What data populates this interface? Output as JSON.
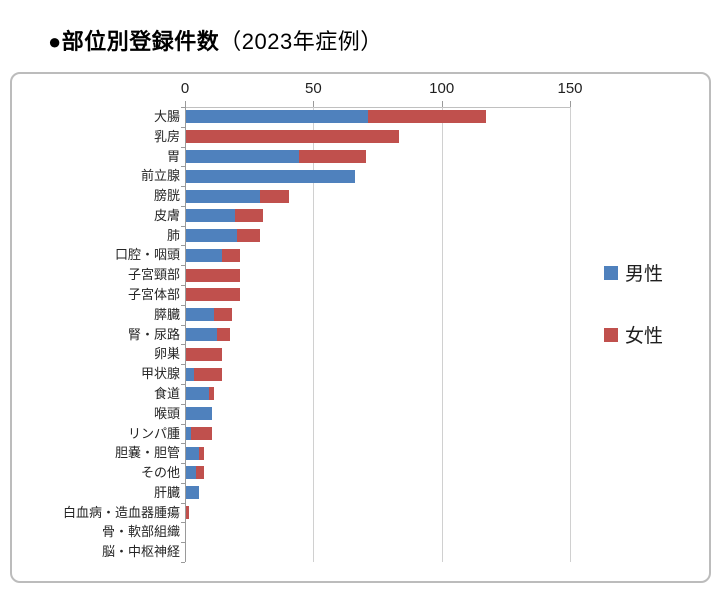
{
  "title": {
    "main": "●部位別登録件数",
    "suffix": "（2023年症例）"
  },
  "legend": {
    "items": [
      {
        "label": "男性",
        "color": "#4F81BD"
      },
      {
        "label": "女性",
        "color": "#C0504D"
      }
    ]
  },
  "colors": {
    "male": "#4F81BD",
    "female": "#C0504D",
    "frame_border": "#BCBCBC",
    "gridline": "#D0D0D0",
    "axis": "#9A9A9A"
  },
  "chart_data": {
    "type": "bar",
    "orientation": "horizontal",
    "stacked": true,
    "title": "●部位別登録件数（2023年症例）",
    "xlabel": "",
    "ylabel": "",
    "xlim": [
      0,
      150
    ],
    "xticks": [
      0,
      50,
      100,
      150
    ],
    "grid": "vertical",
    "legend_position": "right",
    "categories": [
      "大腸",
      "乳房",
      "胃",
      "前立腺",
      "膀胱",
      "皮膚",
      "肺",
      "口腔・咽頭",
      "子宮頸部",
      "子宮体部",
      "膵臓",
      "腎・尿路",
      "卵巣",
      "甲状腺",
      "食道",
      "喉頭",
      "リンパ腫",
      "胆嚢・胆管",
      "その他",
      "肝臓",
      "白血病・造血器腫瘍",
      "骨・軟部組織",
      "脳・中枢神経"
    ],
    "series": [
      {
        "name": "男性",
        "color": "#4F81BD",
        "values": [
          71,
          0,
          44,
          66,
          29,
          19,
          20,
          14,
          0,
          0,
          11,
          12,
          0,
          3,
          9,
          10,
          2,
          5,
          4,
          5,
          0,
          0,
          0
        ]
      },
      {
        "name": "女性",
        "color": "#C0504D",
        "values": [
          46,
          83,
          26,
          0,
          11,
          11,
          9,
          7,
          21,
          21,
          7,
          5,
          14,
          11,
          2,
          0,
          8,
          2,
          3,
          0,
          1,
          0,
          0
        ]
      }
    ]
  }
}
